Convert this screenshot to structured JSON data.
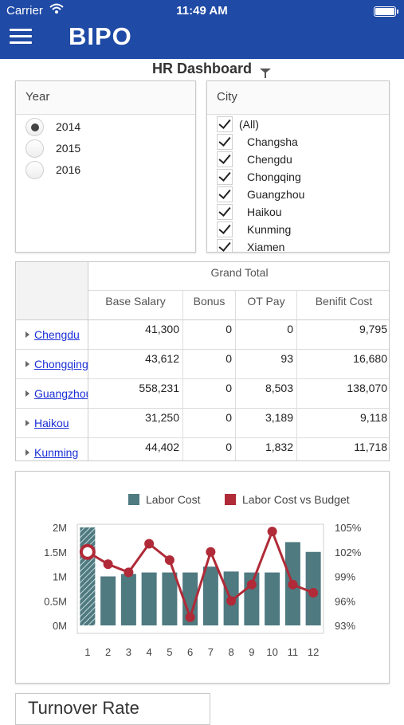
{
  "status": {
    "carrier": "Carrier",
    "time": "11:49 AM"
  },
  "app": {
    "logo": "BIPO"
  },
  "dashboard": {
    "title": "HR Dashboard"
  },
  "year_filter": {
    "title": "Year",
    "options": [
      {
        "label": "2014",
        "checked": true
      },
      {
        "label": "2015",
        "checked": false
      },
      {
        "label": "2016",
        "checked": false
      }
    ]
  },
  "city_filter": {
    "title": "City",
    "options": [
      "(All)",
      "Changsha",
      "Chengdu",
      "Chongqing",
      "Guangzhou",
      "Haikou",
      "Kunming",
      "Xiamen"
    ]
  },
  "pivot": {
    "grand_total": "Grand Total",
    "columns": [
      "Base Salary",
      "Bonus",
      "OT Pay",
      "Benifit Cost"
    ],
    "rows": [
      {
        "city": "Chengdu",
        "values": [
          "41,300",
          "0",
          "0",
          "9,795"
        ]
      },
      {
        "city": "Chongqing",
        "values": [
          "43,612",
          "0",
          "93",
          "16,680"
        ]
      },
      {
        "city": "Guangzhou",
        "values": [
          "558,231",
          "0",
          "8,503",
          "138,070"
        ]
      },
      {
        "city": "Haikou",
        "values": [
          "31,250",
          "0",
          "3,189",
          "9,118"
        ]
      },
      {
        "city": "Kunming",
        "values": [
          "44,402",
          "0",
          "1,832",
          "11,718"
        ]
      }
    ]
  },
  "chart_data": {
    "type": "bar",
    "categories": [
      "1",
      "2",
      "3",
      "4",
      "5",
      "6",
      "7",
      "8",
      "9",
      "10",
      "11",
      "12"
    ],
    "series": [
      {
        "name": "Labor Cost",
        "kind": "bar",
        "axis": "left",
        "color": "#4e7a80",
        "values": [
          2000000,
          1000000,
          1050000,
          1080000,
          1080000,
          1080000,
          1200000,
          1100000,
          1080000,
          1080000,
          1700000,
          1500000
        ]
      },
      {
        "name": "Labor Cost vs Budget",
        "kind": "line",
        "axis": "right",
        "color": "#b02a37",
        "values": [
          102,
          100.5,
          99.5,
          103,
          101,
          94,
          102,
          96,
          98,
          104.5,
          98,
          97
        ]
      }
    ],
    "y_left": {
      "ticks": [
        "2M",
        "1.5M",
        "1M",
        "0.5M",
        "0M"
      ],
      "range": [
        0,
        2000000
      ]
    },
    "y_right": {
      "ticks": [
        "105%",
        "102%",
        "99%",
        "96%",
        "93%"
      ],
      "range": [
        93,
        105
      ]
    },
    "legend": "top-center",
    "grid": false
  },
  "turnover": {
    "title": "Turnover Rate"
  }
}
